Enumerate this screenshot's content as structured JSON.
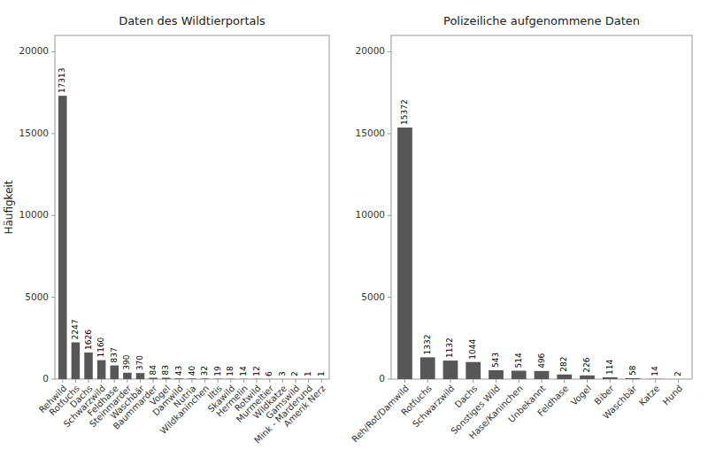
{
  "chart_data": [
    {
      "type": "bar",
      "title": "Daten des Wildtierportals",
      "ylabel": "Häufigkeit",
      "categories": [
        "Rehwild",
        "Rotfuchs",
        "Dachs",
        "Schwarzwild",
        "Feldhase",
        "Steinmarder",
        "Waschbär",
        "Baummarder",
        "Vogel",
        "Damwild",
        "Nutria",
        "Wildkaninchen",
        "Iltis",
        "Skawild",
        "Hermelin",
        "Rotwild",
        "Murmeltier",
        "Wildkatze",
        "Gamswild",
        "Mink - Marderund",
        "Amerik Nerz"
      ],
      "values": [
        17313,
        2247,
        1626,
        1160,
        837,
        390,
        370,
        84,
        83,
        43,
        40,
        32,
        19,
        18,
        14,
        12,
        6,
        3,
        2,
        1,
        1
      ],
      "color": "#575757",
      "ylim": [
        0,
        21000
      ],
      "yticks": [
        0,
        5000,
        10000,
        15000,
        20000
      ],
      "data_labels": true
    },
    {
      "type": "bar",
      "title": "Polizeiliche aufgenommene Daten",
      "categories": [
        "Reh/Rot/Damwild",
        "Rotfuchs",
        "Schwarzwild",
        "Dachs",
        "Sonstiges Wild",
        "Hase/Kaninchen",
        "Unbekannt",
        "Feldhase",
        "Vogel",
        "Biber",
        "Waschbär",
        "Katze",
        "Hund"
      ],
      "values": [
        15372,
        1332,
        1132,
        1044,
        543,
        514,
        496,
        282,
        226,
        114,
        58,
        14,
        2
      ],
      "color": "#575757",
      "ylim": [
        0,
        21000
      ],
      "yticks": [
        0,
        5000,
        10000,
        15000,
        20000
      ],
      "data_labels": true
    }
  ]
}
